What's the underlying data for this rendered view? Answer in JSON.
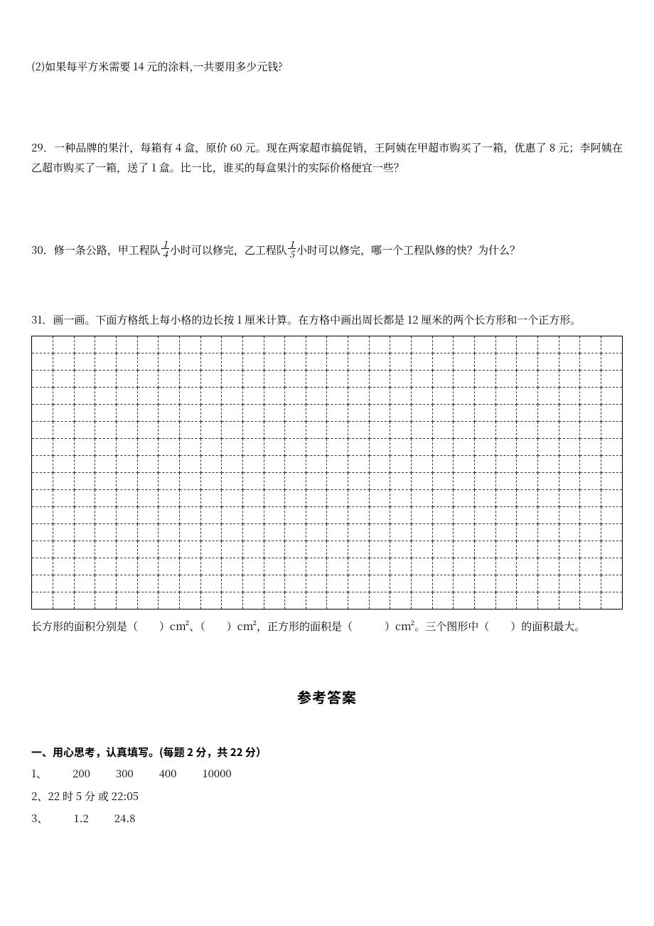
{
  "q28_2": "(2)如果每平方米需要 14 元的涂料,一共要用多少元钱?",
  "q29": "29．一种品牌的果汁，每箱有 4 盒，原价 60 元。现在两家超市搞促销，王阿姨在甲超市购买了一箱，优惠了 8 元；李阿姨在乙超市购买了一箱，送了 1 盒。比一比，谁买的每盒果汁的实际价格便宜一些？",
  "q30_pre": "30．修一条公路，甲工程队",
  "q30_mid": "小时可以修完，乙工程队",
  "q30_post": "小时可以修完，哪一个工程队修的快？为什么？",
  "frac1_num": "1",
  "frac1_den": "4",
  "frac2_num": "1",
  "frac2_den": "5",
  "q31": "31．画一画。下面方格纸上每小格的边长按 1 厘米计算。在方格中画出周长都是 12 厘米的两个长方形和一个正方形。",
  "q31_after": "长方形的面积分别是（　　）cm²、（　　）cm²，正方形的面积是（　　　）cm²。三个图形中（　　）的面积最大。",
  "answers_title": "参考答案",
  "section1": "一、用心思考，认真填写。(每题 2 分，共 22 分）",
  "a1_label": "1、",
  "a1_v1": "200",
  "a1_v2": "300",
  "a1_v3": "400",
  "a1_v4": "10000",
  "a2": "2、22 时 5 分 或 22:05",
  "a3_label": "3、",
  "a3_v1": "1.2",
  "a3_v2": "24.8",
  "grid": {
    "rows": 16,
    "cols": 28
  }
}
